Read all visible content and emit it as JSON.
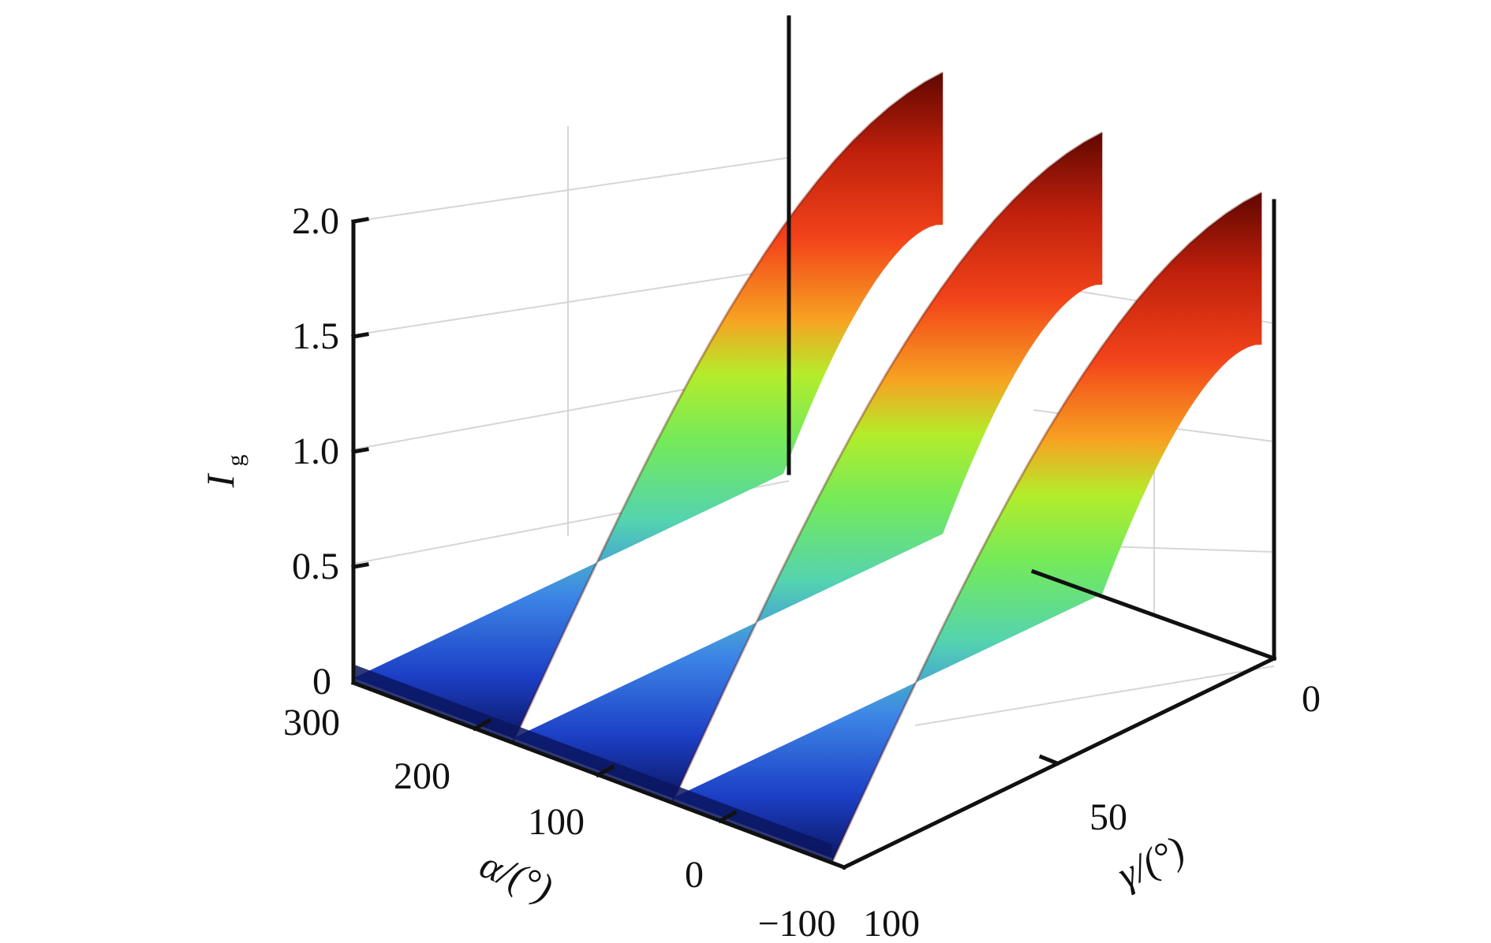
{
  "chart_data": {
    "type": "surface3d",
    "z_axis": {
      "label_main": "I",
      "label_sub": "g",
      "ticks": [
        "0",
        "0.5",
        "1.0",
        "1.5",
        "2.0"
      ],
      "range": [
        0,
        2.0
      ]
    },
    "x_axis": {
      "label": "α/(°)",
      "ticks": [
        "300",
        "200",
        "100",
        "0",
        "−100"
      ],
      "range": [
        -100,
        300
      ]
    },
    "y_axis": {
      "label": "γ/(°)",
      "ticks": [
        "100",
        "50",
        "0"
      ],
      "range": [
        0,
        100
      ]
    },
    "ridges": [
      {
        "alpha_start": 300,
        "alpha_end": 170,
        "peak": 2.0
      },
      {
        "alpha_start": 170,
        "alpha_end": 40,
        "peak": 2.0
      },
      {
        "alpha_start": 40,
        "alpha_end": -90,
        "peak": 2.0
      }
    ],
    "colormap": [
      "#0a1a6e",
      "#1f4fd6",
      "#4aa8ee",
      "#5ee08a",
      "#a6ee2c",
      "#f4a020",
      "#f03c12",
      "#a51208",
      "#5a0800"
    ]
  }
}
